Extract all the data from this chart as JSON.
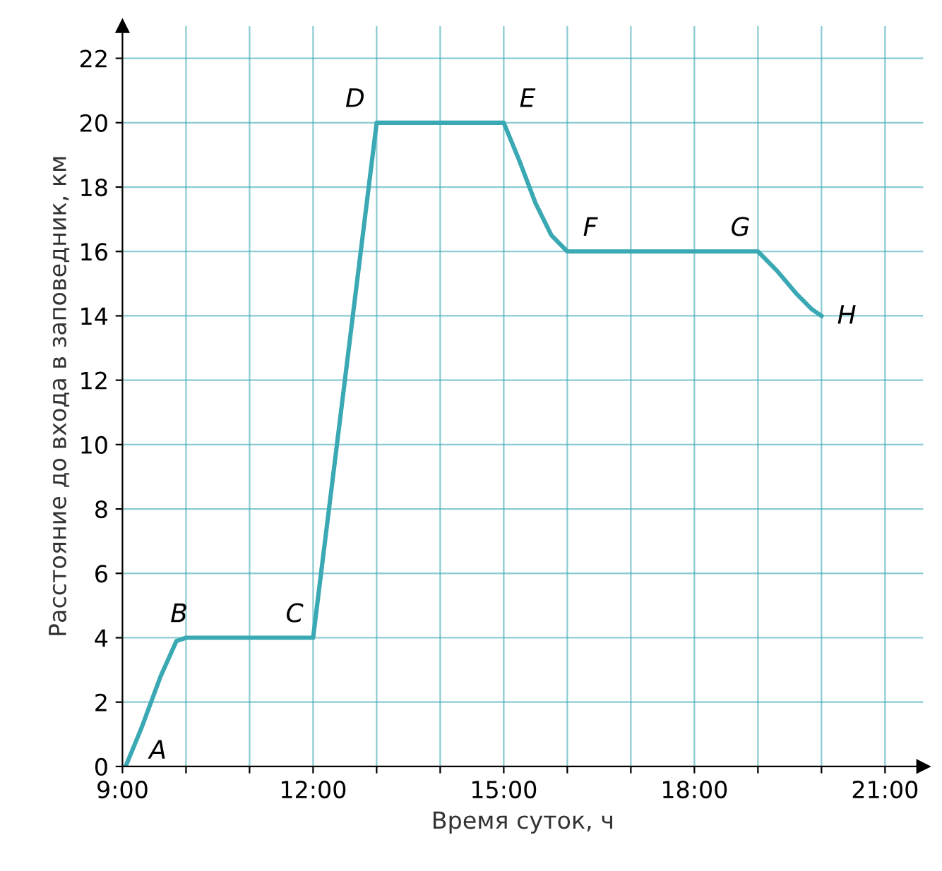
{
  "chart_data": {
    "type": "line",
    "xlabel": "Время суток, ч",
    "ylabel": "Расстояние до входа в заповедник, км",
    "x": [
      9.05,
      9.3,
      9.6,
      9.85,
      10,
      12,
      13,
      15,
      15.25,
      15.5,
      15.75,
      16,
      19,
      19.3,
      19.6,
      19.85,
      20
    ],
    "series": [
      {
        "color": "#3aa9b4",
        "values": [
          0,
          1.2,
          2.8,
          3.9,
          4,
          4,
          20,
          20,
          18.8,
          17.5,
          16.5,
          16,
          16,
          15.4,
          14.7,
          14.2,
          14
        ]
      }
    ],
    "xlim": [
      9,
      21.6
    ],
    "ylim": [
      0,
      23
    ],
    "xticks": [
      {
        "value": 9,
        "label": "9:00"
      },
      {
        "value": 10,
        "label": null
      },
      {
        "value": 11,
        "label": null
      },
      {
        "value": 12,
        "label": "12:00"
      },
      {
        "value": 13,
        "label": null
      },
      {
        "value": 14,
        "label": null
      },
      {
        "value": 15,
        "label": "15:00"
      },
      {
        "value": 16,
        "label": null
      },
      {
        "value": 17,
        "label": null
      },
      {
        "value": 18,
        "label": "18:00"
      },
      {
        "value": 19,
        "label": null
      },
      {
        "value": 20,
        "label": null
      },
      {
        "value": 21,
        "label": "21:00"
      }
    ],
    "yticks": [
      0,
      2,
      4,
      6,
      8,
      10,
      12,
      14,
      16,
      18,
      20,
      22
    ],
    "grid": true,
    "marker": "none",
    "line_style": "solid",
    "annotations": [
      {
        "text": "A",
        "x": 9.05,
        "y": 0
      },
      {
        "text": "B",
        "x": 10,
        "y": 4
      },
      {
        "text": "C",
        "x": 12,
        "y": 4
      },
      {
        "text": "D",
        "x": 13,
        "y": 20
      },
      {
        "text": "E",
        "x": 15,
        "y": 20
      },
      {
        "text": "F",
        "x": 16,
        "y": 16
      },
      {
        "text": "G",
        "x": 19,
        "y": 16
      },
      {
        "text": "H",
        "x": 20,
        "y": 14
      }
    ]
  }
}
